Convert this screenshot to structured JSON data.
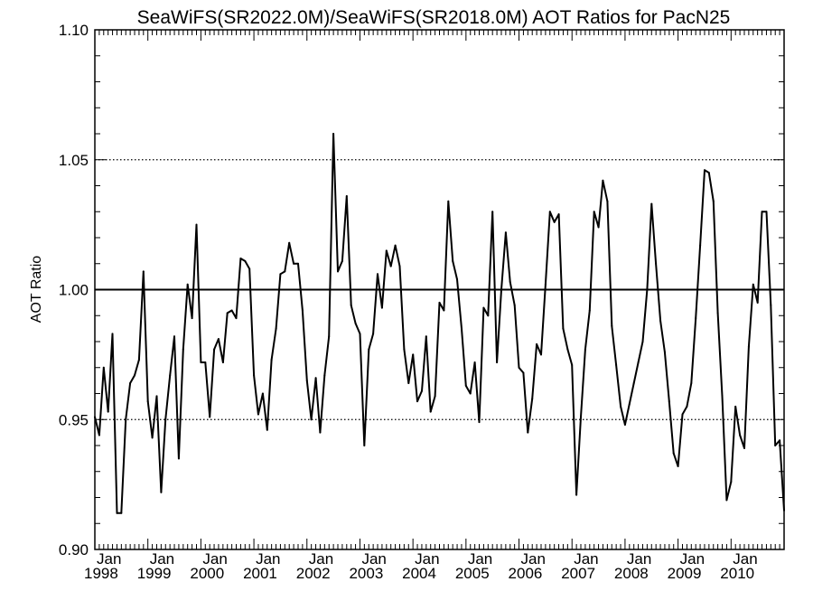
{
  "chart_data": {
    "type": "line",
    "title": "SeaWiFS(SR2022.0M)/SeaWiFS(SR2018.0M)  AOT Ratios for PacN25",
    "xlabel": "",
    "ylabel": "AOT Ratio",
    "ylim": [
      0.9,
      1.1
    ],
    "y_ticks": [
      "0.90",
      "0.95",
      "1.00",
      "1.05",
      "1.10"
    ],
    "x_range_years": [
      1998.0,
      2011.0
    ],
    "x_ticks": [
      {
        "month": "Jan",
        "year": "1998"
      },
      {
        "month": "Jan",
        "year": "1999"
      },
      {
        "month": "Jan",
        "year": "2000"
      },
      {
        "month": "Jan",
        "year": "2001"
      },
      {
        "month": "Jan",
        "year": "2002"
      },
      {
        "month": "Jan",
        "year": "2003"
      },
      {
        "month": "Jan",
        "year": "2004"
      },
      {
        "month": "Jan",
        "year": "2005"
      },
      {
        "month": "Jan",
        "year": "2006"
      },
      {
        "month": "Jan",
        "year": "2007"
      },
      {
        "month": "Jan",
        "year": "2008"
      },
      {
        "month": "Jan",
        "year": "2009"
      },
      {
        "month": "Jan",
        "year": "2010"
      }
    ],
    "reference_lines": [
      {
        "y": 1.0,
        "style": "solid"
      },
      {
        "y": 0.95,
        "style": "dotted"
      },
      {
        "y": 1.05,
        "style": "dotted"
      }
    ],
    "grid": false,
    "series": [
      {
        "x": [
          1998.0,
          1998.083,
          1998.167,
          1998.25,
          1998.333,
          1998.417,
          1998.5,
          1998.583,
          1998.667,
          1998.75,
          1998.833,
          1998.917,
          1999.0,
          1999.083,
          1999.167,
          1999.25,
          1999.333,
          1999.417,
          1999.5,
          1999.583,
          1999.667,
          1999.75,
          1999.833,
          1999.917,
          2000.0,
          2000.083,
          2000.167,
          2000.25,
          2000.333,
          2000.417,
          2000.5,
          2000.583,
          2000.667,
          2000.75,
          2000.833,
          2000.917,
          2001.0,
          2001.083,
          2001.167,
          2001.25,
          2001.333,
          2001.417,
          2001.5,
          2001.583,
          2001.667,
          2001.75,
          2001.833,
          2001.917,
          2002.0,
          2002.083,
          2002.167,
          2002.25,
          2002.333,
          2002.417,
          2002.5,
          2002.583,
          2002.667,
          2002.75,
          2002.833,
          2002.917,
          2003.0,
          2003.083,
          2003.167,
          2003.25,
          2003.333,
          2003.417,
          2003.5,
          2003.583,
          2003.667,
          2003.75,
          2003.833,
          2003.917,
          2004.0,
          2004.083,
          2004.167,
          2004.25,
          2004.333,
          2004.417,
          2004.5,
          2004.583,
          2004.667,
          2004.75,
          2004.833,
          2004.917,
          2005.0,
          2005.083,
          2005.167,
          2005.25,
          2005.333,
          2005.417,
          2005.5,
          2005.583,
          2005.667,
          2005.75,
          2005.833,
          2005.917,
          2006.0,
          2006.083,
          2006.167,
          2006.25,
          2006.333,
          2006.417,
          2006.5,
          2006.583,
          2006.667,
          2006.75,
          2006.833,
          2006.917,
          2007.0,
          2007.083,
          2007.167,
          2007.25,
          2007.333,
          2007.417,
          2007.5,
          2007.583,
          2007.667,
          2007.75,
          2007.833,
          2007.917,
          2008.0,
          2008.083,
          2008.167,
          2008.25,
          2008.333,
          2008.417,
          2008.5,
          2008.583,
          2008.667,
          2008.75,
          2008.833,
          2008.917,
          2009.0,
          2009.083,
          2009.167,
          2009.25,
          2009.333,
          2009.417,
          2009.5,
          2009.583,
          2009.667,
          2009.75,
          2009.833,
          2009.917,
          2010.0,
          2010.083,
          2010.167,
          2010.25,
          2010.333,
          2010.417,
          2010.5,
          2010.583,
          2010.667,
          2010.75,
          2010.833,
          2010.917,
          2011.0
        ],
        "y": [
          0.951,
          0.944,
          0.97,
          0.953,
          0.983,
          0.914,
          0.914,
          0.95,
          0.964,
          0.967,
          0.973,
          1.007,
          0.957,
          0.943,
          0.959,
          0.922,
          0.95,
          0.967,
          0.982,
          0.935,
          0.977,
          1.002,
          0.989,
          1.025,
          0.972,
          0.972,
          0.951,
          0.977,
          0.981,
          0.972,
          0.991,
          0.992,
          0.989,
          1.012,
          1.011,
          1.008,
          0.967,
          0.952,
          0.96,
          0.946,
          0.973,
          0.985,
          1.006,
          1.007,
          1.018,
          1.01,
          1.01,
          0.992,
          0.965,
          0.95,
          0.966,
          0.945,
          0.967,
          0.982,
          1.06,
          1.007,
          1.011,
          1.036,
          0.994,
          0.987,
          0.983,
          0.94,
          0.977,
          0.983,
          1.006,
          0.993,
          1.015,
          1.009,
          1.017,
          1.009,
          0.977,
          0.964,
          0.975,
          0.957,
          0.961,
          0.982,
          0.953,
          0.959,
          0.995,
          0.992,
          1.034,
          1.011,
          1.004,
          0.985,
          0.963,
          0.96,
          0.972,
          0.949,
          0.993,
          0.99,
          1.03,
          0.972,
          1.0,
          1.022,
          1.003,
          0.994,
          0.97,
          0.968,
          0.945,
          0.958,
          0.979,
          0.975,
          1.002,
          1.03,
          1.026,
          1.029,
          0.985,
          0.977,
          0.971,
          0.921,
          0.951,
          0.977,
          0.992,
          1.03,
          1.024,
          1.042,
          1.034,
          0.986,
          0.971,
          0.955,
          0.948,
          0.956,
          0.964,
          0.972,
          0.98,
          1.0,
          1.033,
          1.01,
          0.988,
          0.976,
          0.957,
          0.937,
          0.932,
          0.952,
          0.955,
          0.964,
          0.989,
          1.017,
          1.046,
          1.045,
          1.034,
          0.991,
          0.959,
          0.919,
          0.926,
          0.955,
          0.944,
          0.939,
          0.978,
          1.002,
          0.995,
          1.03,
          1.03,
          0.994,
          0.94,
          0.942,
          0.915
        ]
      }
    ]
  }
}
